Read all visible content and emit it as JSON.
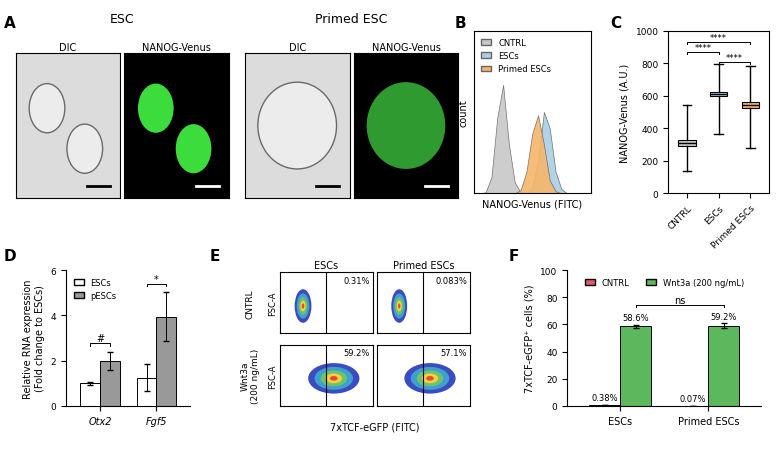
{
  "chart_data": [
    {
      "type": "image",
      "panel": "A",
      "groups": [
        {
          "title": "ESC",
          "channels": [
            "DIC",
            "NANOG-Venus"
          ]
        },
        {
          "title": "Primed ESC",
          "channels": [
            "DIC",
            "NANOG-Venus"
          ]
        }
      ]
    },
    {
      "type": "area",
      "panel": "B",
      "x_label": "NANOG-Venus (FITC)",
      "y_label": "count",
      "x": [
        0,
        5,
        10,
        15,
        20,
        25,
        30,
        35,
        40,
        45,
        50,
        55,
        60,
        65,
        70,
        75,
        80,
        85,
        90,
        95,
        100
      ],
      "xlim": [
        0,
        100
      ],
      "ylim": [
        0,
        150
      ],
      "tick_labels": false,
      "legend": "upper left",
      "series": [
        {
          "name": "CNTRL",
          "color": "#c8c8c8",
          "values": [
            0,
            0,
            1,
            15,
            70,
            100,
            45,
            10,
            1,
            0,
            0,
            0,
            0,
            0,
            0,
            0,
            0,
            0,
            0,
            0,
            0
          ]
        },
        {
          "name": "ESCs",
          "color": "#a9cfe3",
          "values": [
            0,
            0,
            0,
            0,
            0,
            0,
            0,
            0,
            0,
            0,
            5,
            30,
            75,
            60,
            20,
            4,
            0,
            0,
            0,
            0,
            0
          ]
        },
        {
          "name": "Primed ESCs",
          "color": "#f6b56b",
          "values": [
            0,
            0,
            0,
            0,
            0,
            0,
            0,
            0,
            3,
            20,
            55,
            72,
            45,
            12,
            2,
            0,
            0,
            0,
            0,
            0,
            0
          ]
        }
      ]
    },
    {
      "type": "box",
      "panel": "C",
      "y_label": "NANOG-Venus (A.U.)",
      "categories": [
        "CNTRL",
        "ESCs",
        "Primed ESCs"
      ],
      "colors": [
        "#c8c8c8",
        "#a9cfe3",
        "#f6b56b"
      ],
      "boxes": [
        {
          "min": 140,
          "q1": 290,
          "median": 310,
          "q3": 330,
          "max": 545
        },
        {
          "min": 365,
          "q1": 600,
          "median": 612,
          "q3": 625,
          "max": 795
        },
        {
          "min": 280,
          "q1": 525,
          "median": 542,
          "q3": 560,
          "max": 780
        }
      ],
      "ylim": [
        0,
        1000
      ],
      "yticks": [
        0,
        200,
        400,
        600,
        800,
        1000
      ],
      "annotations": [
        {
          "categories": [
            1,
            2
          ],
          "text": "****"
        },
        {
          "categories": [
            0,
            1
          ],
          "text": "****"
        },
        {
          "categories": [
            0,
            2
          ],
          "text": "****"
        }
      ]
    },
    {
      "type": "bar",
      "panel": "D",
      "y_label": "Relative RNA expression\n(Fold change to ESCs)",
      "categories": [
        "Otx2",
        "Fgf5"
      ],
      "series": [
        {
          "name": "ESCs",
          "color": "#ffffff",
          "values": [
            1.0,
            1.25
          ],
          "errors": [
            0.06,
            0.6
          ]
        },
        {
          "name": "pESCs",
          "color": "#999999",
          "values": [
            2.0,
            3.95
          ],
          "errors": [
            0.4,
            1.1
          ]
        }
      ],
      "ylim": [
        0,
        6
      ],
      "yticks": [
        0,
        2,
        4,
        6
      ],
      "legend": "upper left",
      "annotations": [
        {
          "categories": [
            0
          ],
          "text": "#"
        },
        {
          "categories": [
            1
          ],
          "text": "*"
        }
      ]
    },
    {
      "type": "scatter_density",
      "panel": "E",
      "x_label": "7xTCF-eGFP (FITC)",
      "y_label": "FSC-A",
      "columns": [
        "ESCs",
        "Primed ESCs"
      ],
      "rows": [
        "CNTRL",
        "Wnt3a\n(200 ng/mL)"
      ],
      "xlim": [
        0,
        100
      ],
      "ylim": [
        0,
        100
      ],
      "tick_labels": false,
      "gate": 50,
      "plots": [
        [
          {
            "annotation": "0.31%",
            "x": 25,
            "y": 45,
            "width": 18,
            "height": 55
          },
          {
            "annotation": "0.083%",
            "x": 24,
            "y": 45,
            "width": 17,
            "height": 55
          }
        ],
        [
          {
            "annotation": "59.2%",
            "x": 58,
            "y": 45,
            "width": 55,
            "height": 50
          },
          {
            "annotation": "57.1%",
            "x": 57,
            "y": 45,
            "width": 55,
            "height": 50
          }
        ]
      ]
    },
    {
      "type": "bar",
      "panel": "F",
      "y_label": "7xTCF-eGFP⁺ cells (%)",
      "categories": [
        "ESCs",
        "Primed ESCs"
      ],
      "series": [
        {
          "name": "CNTRL",
          "color": "#e05a6b",
          "values": [
            0.38,
            0.07
          ],
          "errors": [
            0.1,
            0.03
          ],
          "value_labels": [
            "0.38%",
            "0.07%"
          ]
        },
        {
          "name": "Wnt3a (200 ng/mL)",
          "color": "#5cb85c",
          "values": [
            58.6,
            59.2
          ],
          "errors": [
            1.2,
            1.5
          ],
          "value_labels": [
            "58.6%",
            "59.2%"
          ]
        }
      ],
      "ylim": [
        0,
        100
      ],
      "yticks": [
        0,
        20,
        40,
        60,
        80,
        100
      ],
      "legend": "upper center",
      "data_labels": true,
      "annotations": [
        {
          "series": 1,
          "categories": [
            0,
            1
          ],
          "text": "ns"
        }
      ]
    }
  ]
}
